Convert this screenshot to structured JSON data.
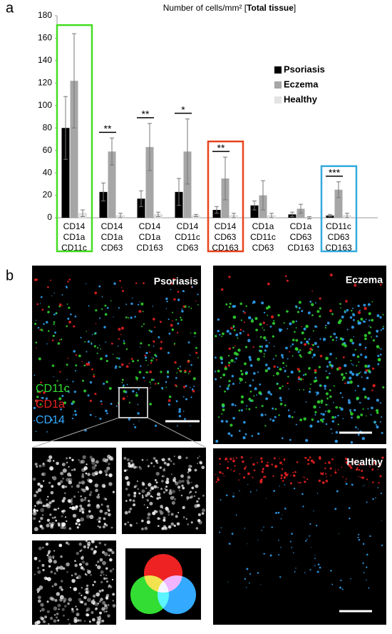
{
  "chart_data": {
    "type": "bar",
    "panel_label": "a",
    "title_parts": [
      "Number of cells/mm² [",
      "Total tissue",
      "]"
    ],
    "categories": [
      [
        "CD14",
        "CD1a",
        "CD11c"
      ],
      [
        "CD14",
        "CD1a",
        "CD63"
      ],
      [
        "CD14",
        "CD1a",
        "CD163"
      ],
      [
        "CD14",
        "CD11c",
        "CD63"
      ],
      [
        "CD14",
        "CD63",
        "CD163"
      ],
      [
        "CD1a",
        "CD11c",
        "CD63"
      ],
      [
        "CD1a",
        "CD63",
        "CD163"
      ],
      [
        "CD11c",
        "CD63",
        "CD163"
      ]
    ],
    "series": [
      {
        "name": "Psoriasis",
        "color": "#000000",
        "values": [
          80,
          23,
          17,
          23,
          7,
          11,
          3,
          2
        ],
        "errors": [
          28,
          8,
          7,
          12,
          3,
          4,
          2,
          1
        ]
      },
      {
        "name": "Eczema",
        "color": "#a6a6a6",
        "values": [
          122,
          59,
          63,
          59,
          35,
          20,
          8,
          25
        ],
        "errors": [
          42,
          12,
          21,
          29,
          19,
          13,
          4,
          7
        ]
      },
      {
        "name": "Healthy",
        "color": "#e3e3e3",
        "values": [
          4,
          2,
          3,
          2,
          2,
          2,
          0,
          2
        ],
        "errors": [
          3,
          2,
          2,
          1,
          2,
          2,
          1,
          2
        ]
      }
    ],
    "significance": [
      null,
      "**",
      "**",
      "*",
      "**",
      null,
      null,
      "***"
    ],
    "highlights": [
      {
        "index": 0,
        "color": "#44dd22"
      },
      {
        "index": 4,
        "color": "#e8431c"
      },
      {
        "index": 7,
        "color": "#33aadd"
      }
    ],
    "ylim": [
      0,
      180
    ],
    "yticks": [
      0,
      20,
      40,
      60,
      80,
      100,
      120,
      140,
      160,
      180
    ],
    "legend": "upper right"
  },
  "panel_b": {
    "label": "b",
    "images": [
      "Psoriasis",
      "Eczema",
      "Healthy"
    ],
    "channels": [
      {
        "name": "CD11c",
        "color": "#33dd33"
      },
      {
        "name": "CD1a",
        "color": "#ee2222"
      },
      {
        "name": "CD14",
        "color": "#33aaff"
      }
    ]
  }
}
